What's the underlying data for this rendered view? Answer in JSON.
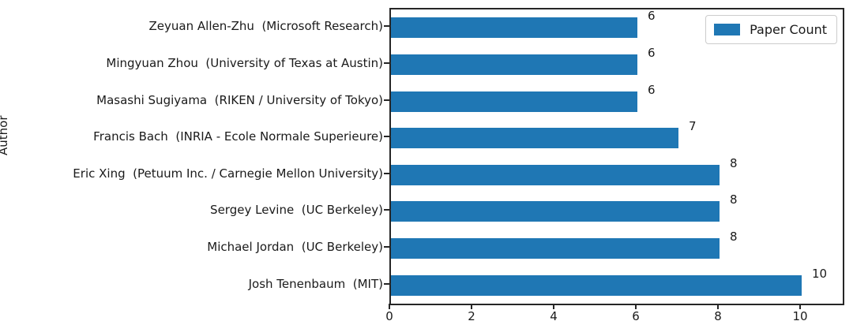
{
  "chart_data": {
    "type": "bar",
    "orientation": "horizontal",
    "title": "",
    "xlabel": "",
    "ylabel": "Author",
    "categories": [
      "Zeyuan Allen-Zhu  (Microsoft Research)",
      "Mingyuan Zhou  (University of Texas at Austin)",
      "Masashi Sugiyama  (RIKEN / University of Tokyo)",
      "Francis Bach  (INRIA - Ecole Normale Superieure)",
      "Eric Xing  (Petuum Inc. / Carnegie Mellon University)",
      "Sergey Levine  (UC Berkeley)",
      "Michael Jordan  (UC Berkeley)",
      "Josh Tenenbaum  (MIT)"
    ],
    "values": [
      6,
      6,
      6,
      7,
      8,
      8,
      8,
      10
    ],
    "bar_labels": [
      "6",
      "6",
      "6",
      "7",
      "8",
      "8",
      "8",
      "10"
    ],
    "xticks": [
      0,
      2,
      4,
      6,
      8,
      10
    ],
    "xlim": [
      0,
      11
    ],
    "grid": false,
    "legend": {
      "label": "Paper Count",
      "position": "upper right"
    },
    "colors": {
      "bar": "#1f77b4",
      "spine": "#262626",
      "text": "#1a1a1a"
    }
  }
}
